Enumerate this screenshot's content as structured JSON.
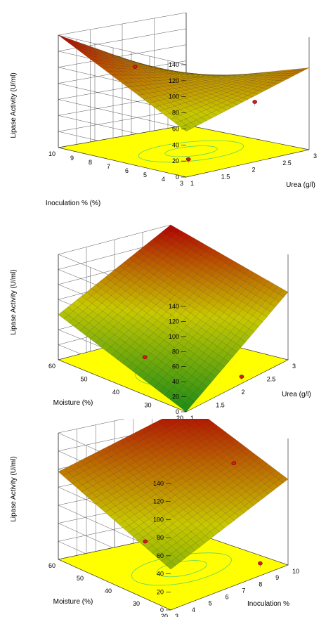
{
  "chart_data": [
    {
      "type": "surface3d",
      "zlabel": "Lipase Activity (U/ml)",
      "xlabel": "Urea (g/l)",
      "ylabel": "Inoculation % (%)",
      "zticks": [
        "0",
        "20",
        "40",
        "60",
        "80",
        "100",
        "120",
        "140"
      ],
      "xticks": [
        "1",
        "1.5",
        "2",
        "2.5",
        "3"
      ],
      "yticks": [
        "3",
        "4",
        "5",
        "6",
        "7",
        "8",
        "9",
        "10"
      ],
      "zlim": [
        0,
        140
      ],
      "surface_corners": {
        "low_x_low_y": 57,
        "high_x_low_y": 102,
        "low_x_high_y": 140,
        "high_x_high_y": 56
      },
      "design_points": [
        {
          "z": 85
        },
        {
          "z": 60
        },
        {
          "z": 18
        }
      ],
      "color_scale": [
        "#1a8c1a",
        "#c8c800",
        "#b00000"
      ],
      "floor_color": "#ffff00"
    },
    {
      "type": "surface3d",
      "zlabel": "Lipase Activity (U/ml)",
      "xlabel": "Urea (g/l)",
      "ylabel": "Moisture (%)",
      "zticks": [
        "0",
        "20",
        "40",
        "60",
        "80",
        "100",
        "120",
        "140"
      ],
      "xticks": [
        "1",
        "1.5",
        "2",
        "2.5",
        "3"
      ],
      "yticks": [
        "20",
        "30",
        "40",
        "50",
        "60"
      ],
      "zlim": [
        0,
        140
      ],
      "surface_corners": {
        "low_x_low_y": 0,
        "high_x_low_y": 90,
        "low_x_high_y": 60,
        "high_x_high_y": 140
      },
      "design_points": [
        {
          "z": 5
        },
        {
          "z": 12
        }
      ],
      "color_scale": [
        "#1a8c1a",
        "#c8c800",
        "#b00000"
      ],
      "floor_color": "#ffff00"
    },
    {
      "type": "surface3d",
      "zlabel": "Lipase Activity (U/ml)",
      "xlabel": "Inoculation %",
      "ylabel": "Moisture (%)",
      "zticks": [
        "0",
        "20",
        "40",
        "60",
        "80",
        "100",
        "120",
        "140"
      ],
      "xticks": [
        "3",
        "4",
        "5",
        "6",
        "7",
        "8",
        "9",
        "10"
      ],
      "yticks": [
        "20",
        "30",
        "40",
        "50",
        "60"
      ],
      "zlim": [
        0,
        140
      ],
      "surface_corners": {
        "low_x_low_y": 45,
        "high_x_low_y": 95,
        "low_x_high_y": 97,
        "high_x_high_y": 140
      },
      "design_points": [
        {
          "z": 112
        },
        {
          "z": 58
        },
        {
          "z": 12
        }
      ],
      "color_scale": [
        "#1a8c1a",
        "#c8c800",
        "#b00000"
      ],
      "floor_color": "#ffff00"
    }
  ]
}
